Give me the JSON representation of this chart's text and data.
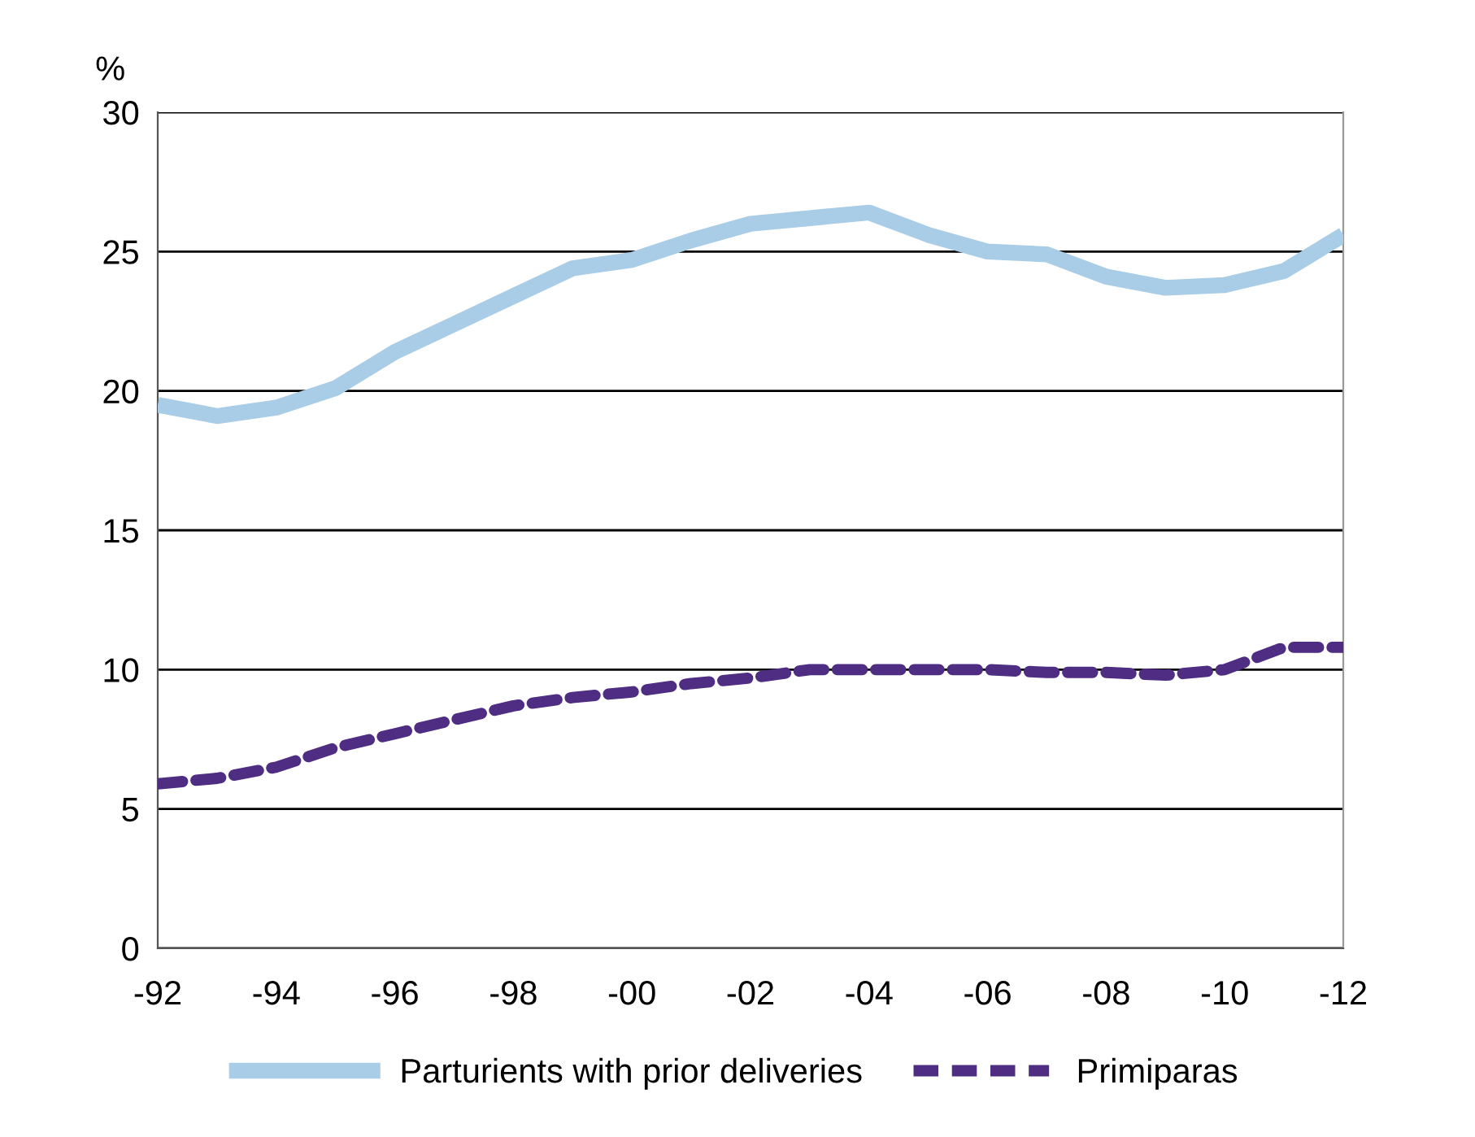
{
  "chart_data": {
    "type": "line",
    "ylabel": "%",
    "categories": [
      "-92",
      null,
      "-94",
      null,
      "-96",
      null,
      "-98",
      null,
      "-00",
      null,
      "-02",
      null,
      "-04",
      null,
      "-06",
      null,
      "-08",
      null,
      "-10",
      null,
      "-12"
    ],
    "series": [
      {
        "name": "Parturients with prior deliveries",
        "color": "#a9cde6",
        "line_style": "solid",
        "values": [
          19.5,
          19.1,
          19.4,
          20.1,
          21.4,
          22.4,
          23.4,
          24.4,
          24.7,
          25.4,
          26.0,
          26.2,
          26.4,
          25.6,
          25.0,
          24.9,
          24.1,
          23.7,
          23.8,
          24.3,
          25.6
        ]
      },
      {
        "name": "Primiparas",
        "color": "#4f2d82",
        "line_style": "dashed",
        "values": [
          5.9,
          6.1,
          6.5,
          7.2,
          7.7,
          8.2,
          8.7,
          9.0,
          9.2,
          9.5,
          9.7,
          10.0,
          10.0,
          10.0,
          10.0,
          9.9,
          9.9,
          9.8,
          10.0,
          10.8,
          10.8
        ]
      }
    ],
    "ylim": [
      0,
      30
    ],
    "yticks": [
      0,
      5,
      10,
      15,
      20,
      25,
      30
    ],
    "grid": "y",
    "legend": "bottom",
    "marker": "none"
  }
}
